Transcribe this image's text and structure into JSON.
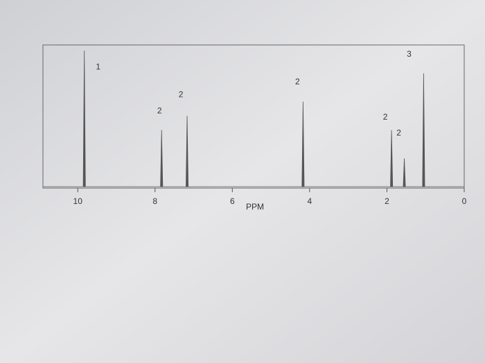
{
  "chart_data": {
    "type": "spectrum",
    "x_label": "PPM",
    "x": [
      9.83,
      7.83,
      7.17,
      4.17,
      1.88,
      1.55,
      1.05
    ],
    "values": [
      96,
      40,
      50,
      60,
      40,
      20,
      80
    ],
    "integrations": [
      1,
      2,
      2,
      2,
      2,
      2,
      3
    ],
    "color": "#555555",
    "xlim": [
      10.9,
      0
    ],
    "xticks": [
      10,
      8,
      6,
      4,
      2,
      0
    ],
    "ylim": [
      0,
      100
    ]
  }
}
